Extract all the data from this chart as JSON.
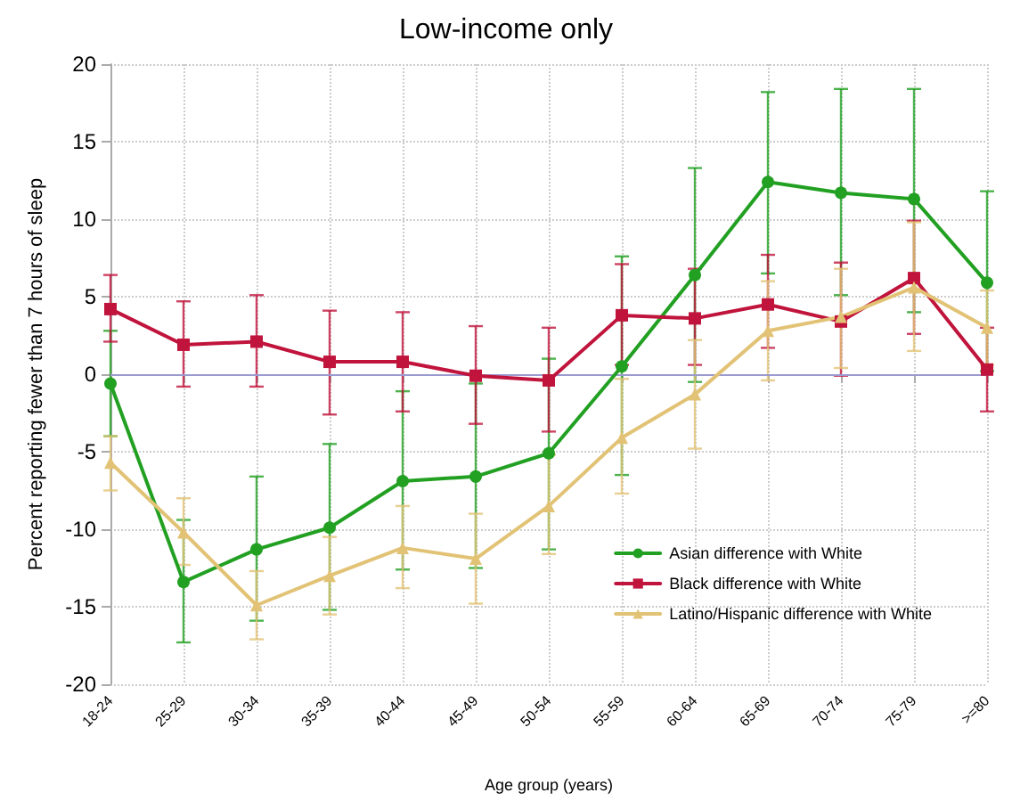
{
  "chart_data": {
    "type": "line",
    "title": "Low-income only",
    "xlabel": "Age group (years)",
    "ylabel": "Percent reporting fewer than 7 hours of sleep",
    "categories": [
      "18-24",
      "25-29",
      "30-34",
      "35-39",
      "40-44",
      "45-49",
      "50-54",
      "55-59",
      "60-64",
      "65-69",
      "70-74",
      "75-79",
      ">=80"
    ],
    "series": [
      {
        "name": "Asian difference with White",
        "color": "#22a022",
        "marker": "circle",
        "values": [
          -0.6,
          -13.4,
          -11.3,
          -9.9,
          -6.9,
          -6.6,
          -5.1,
          0.5,
          6.4,
          12.4,
          11.7,
          11.3,
          5.9
        ],
        "errors": [
          [
            -4.0,
            2.8
          ],
          [
            -17.3,
            -9.4
          ],
          [
            -15.9,
            -6.6
          ],
          [
            -15.2,
            -4.5
          ],
          [
            -12.6,
            -1.1
          ],
          [
            -12.5,
            -0.6
          ],
          [
            -11.3,
            1.0
          ],
          [
            -6.5,
            7.6
          ],
          [
            -0.5,
            13.3
          ],
          [
            6.5,
            18.2
          ],
          [
            5.1,
            18.4
          ],
          [
            4.0,
            18.4
          ],
          [
            0.2,
            11.8
          ]
        ]
      },
      {
        "name": "Black difference with White",
        "color": "#c0143c",
        "marker": "square",
        "values": [
          4.2,
          1.9,
          2.1,
          0.8,
          0.8,
          -0.1,
          -0.4,
          3.8,
          3.6,
          4.5,
          3.4,
          6.2,
          0.3
        ],
        "errors": [
          [
            2.1,
            6.4
          ],
          [
            -0.8,
            4.7
          ],
          [
            -0.8,
            5.1
          ],
          [
            -2.6,
            4.1
          ],
          [
            -2.4,
            4.0
          ],
          [
            -3.2,
            3.1
          ],
          [
            -3.7,
            3.0
          ],
          [
            0.6,
            7.1
          ],
          [
            0.6,
            6.8
          ],
          [
            1.7,
            7.7
          ],
          [
            -0.1,
            7.2
          ],
          [
            2.6,
            9.9
          ],
          [
            -2.4,
            3.0
          ]
        ]
      },
      {
        "name": "Latino/Hispanic difference with White",
        "color": "#e2c376",
        "marker": "triangle",
        "values": [
          -5.7,
          -10.2,
          -14.9,
          -13.0,
          -11.2,
          -11.9,
          -8.5,
          -4.1,
          -1.3,
          2.8,
          3.7,
          5.6,
          3.0
        ],
        "errors": [
          [
            -7.5,
            -4.0
          ],
          [
            -12.3,
            -8.0
          ],
          [
            -17.1,
            -12.7
          ],
          [
            -15.5,
            -10.5
          ],
          [
            -13.8,
            -8.5
          ],
          [
            -14.8,
            -9.0
          ],
          [
            -11.6,
            -5.2
          ],
          [
            -7.7,
            -0.3
          ],
          [
            -4.8,
            2.2
          ],
          [
            -0.4,
            6.0
          ],
          [
            0.4,
            6.8
          ],
          [
            1.5,
            9.8
          ],
          [
            0.6,
            5.4
          ]
        ]
      }
    ],
    "ylim": [
      -20,
      20
    ],
    "yticks": [
      -20,
      -15,
      -10,
      -5,
      0,
      5,
      10,
      15,
      20
    ],
    "ref_lines": [
      {
        "axis": "y",
        "value": 0,
        "color": "#9a9ad0"
      }
    ],
    "grid": true,
    "legend": "bottom right",
    "line_style": "solid"
  }
}
